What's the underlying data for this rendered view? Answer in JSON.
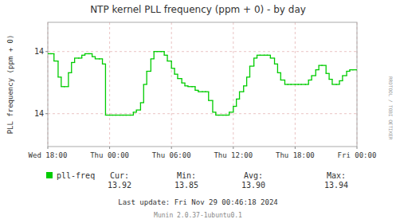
{
  "chart_data": {
    "type": "line",
    "title": "NTP kernel PLL frequency (ppm + 0) - by day",
    "ylabel": "PLL frequency (ppm + 0)",
    "x": [
      0.0,
      0.3,
      0.6,
      1.0,
      1.3,
      1.6,
      2.0,
      2.3,
      2.6,
      3.0,
      3.3,
      3.6,
      4.0,
      4.3,
      4.6,
      5.0,
      5.3,
      5.6,
      6.0,
      6.3,
      6.6,
      7.0,
      7.3,
      7.6,
      8.0,
      8.3,
      8.6,
      9.0,
      9.3,
      9.6,
      10.0,
      10.3,
      10.6,
      11.0,
      11.3,
      11.6,
      12.0,
      12.3,
      12.6,
      13.0,
      13.3,
      13.6,
      14.0,
      14.3,
      14.6,
      15.0,
      15.3,
      15.6,
      16.0,
      16.3,
      16.6,
      17.0,
      17.3,
      17.6,
      18.0,
      18.3,
      18.6,
      19.0,
      19.3,
      19.6,
      20.0,
      20.3,
      20.6,
      21.0,
      21.3,
      21.6,
      22.0,
      22.3,
      22.6,
      23.0,
      23.3,
      23.6,
      24.0,
      24.3,
      24.6,
      25.0,
      25.3,
      25.6,
      26.0,
      26.3,
      26.6,
      27.0,
      27.3,
      27.6,
      28.0,
      28.3,
      28.6,
      29.0,
      29.3,
      29.6,
      30.0
    ],
    "series": [
      {
        "name": "pll-freq",
        "color": "#00cc00",
        "line_style": "step",
        "values": [
          13.942,
          13.942,
          13.932,
          13.91,
          13.897,
          13.897,
          13.916,
          13.93,
          13.936,
          13.936,
          13.94,
          13.942,
          13.942,
          13.938,
          13.935,
          13.935,
          13.928,
          13.858,
          13.858,
          13.858,
          13.858,
          13.858,
          13.858,
          13.858,
          13.858,
          13.862,
          13.865,
          13.875,
          13.9,
          13.918,
          13.935,
          13.945,
          13.945,
          13.945,
          13.94,
          13.932,
          13.922,
          13.914,
          13.908,
          13.902,
          13.898,
          13.897,
          13.897,
          13.892,
          13.89,
          13.89,
          13.89,
          13.878,
          13.862,
          13.858,
          13.858,
          13.858,
          13.858,
          13.862,
          13.87,
          13.88,
          13.89,
          13.898,
          13.91,
          13.925,
          13.936,
          13.94,
          13.94,
          13.94,
          13.94,
          13.936,
          13.928,
          13.916,
          13.906,
          13.9,
          13.9,
          13.9,
          13.9,
          13.9,
          13.9,
          13.9,
          13.906,
          13.912,
          13.92,
          13.926,
          13.926,
          13.915,
          13.907,
          13.9,
          13.9,
          13.905,
          13.912,
          13.918,
          13.92,
          13.92,
          13.92
        ]
      }
    ],
    "xlim": [
      0,
      30
    ],
    "xticks": [
      {
        "value": 0,
        "label": "Wed 18:00"
      },
      {
        "value": 6,
        "label": "Thu 00:00"
      },
      {
        "value": 12,
        "label": "Thu 06:00"
      },
      {
        "value": 18,
        "label": "Thu 12:00"
      },
      {
        "value": 24,
        "label": "Thu 18:00"
      },
      {
        "value": 30,
        "label": "Fri 00:00"
      }
    ],
    "ylim": [
      13.815,
      13.985
    ],
    "yticks": [
      {
        "value": 13.86,
        "label": "14"
      },
      {
        "value": 13.945,
        "label": "14"
      }
    ],
    "grid": true,
    "legend": "bottom",
    "stats": [
      {
        "label": "Cur:",
        "value": "13.92"
      },
      {
        "label": "Min:",
        "value": "13.85"
      },
      {
        "label": "Avg:",
        "value": "13.90"
      },
      {
        "label": "Max:",
        "value": "13.94"
      }
    ],
    "annotations": [
      "RRDTOOL / TOBI OETIKER",
      "Last update: Fri Nov 29 00:46:18 2024",
      "Munin 2.0.37-1ubuntu0.1"
    ]
  }
}
